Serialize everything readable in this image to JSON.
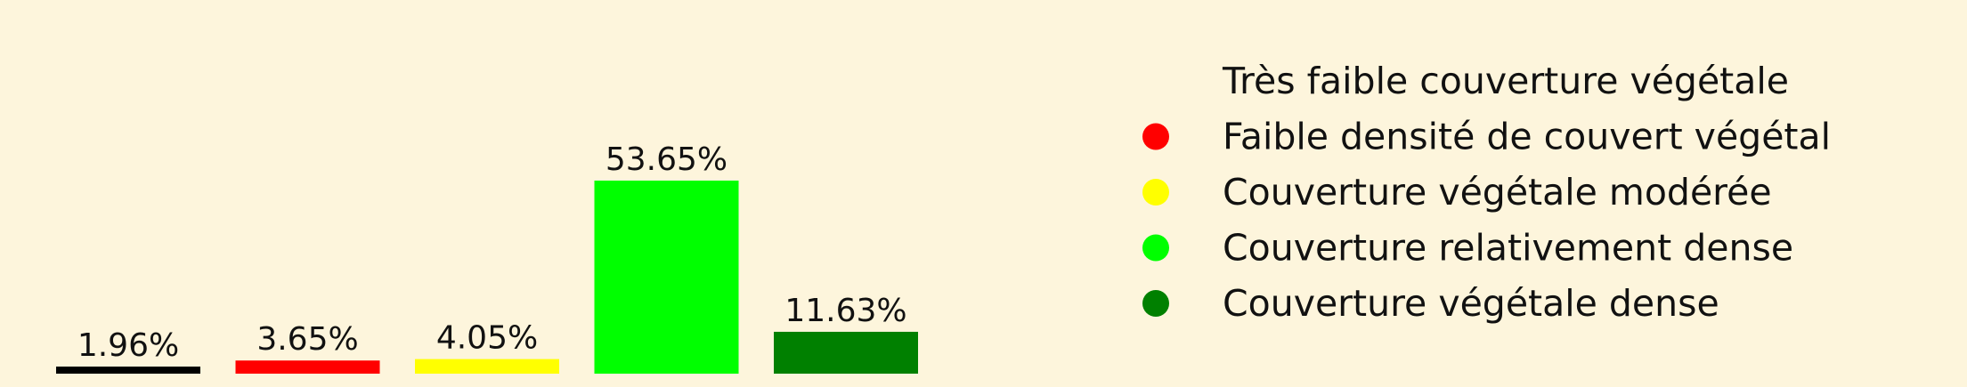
{
  "chart_data": {
    "type": "bar",
    "categories": [
      "Très faible couverture végétale",
      "Faible densité de couvert végétal",
      "Couverture végétale modérée",
      "Couverture relativement dense",
      "Couverture végétale dense"
    ],
    "values": [
      1.96,
      3.65,
      4.05,
      53.65,
      11.63
    ],
    "value_labels": [
      "1.96%",
      "3.65%",
      "4.05%",
      "53.65%",
      "11.63%"
    ],
    "colors": [
      "#000000",
      "#ff0000",
      "#ffff00",
      "#00ff00",
      "#008000"
    ],
    "legend": {
      "entries": [
        "Très faible couverture végétale",
        "Faible densité de couvert végétal",
        "Couverture végétale modérée",
        "Couverture relativement dense",
        "Couverture végétale dense"
      ],
      "placement": "right"
    },
    "title": "",
    "xlabel": "",
    "ylabel": "",
    "grid": false
  },
  "colors": {
    "background": "#fdf5dc"
  }
}
